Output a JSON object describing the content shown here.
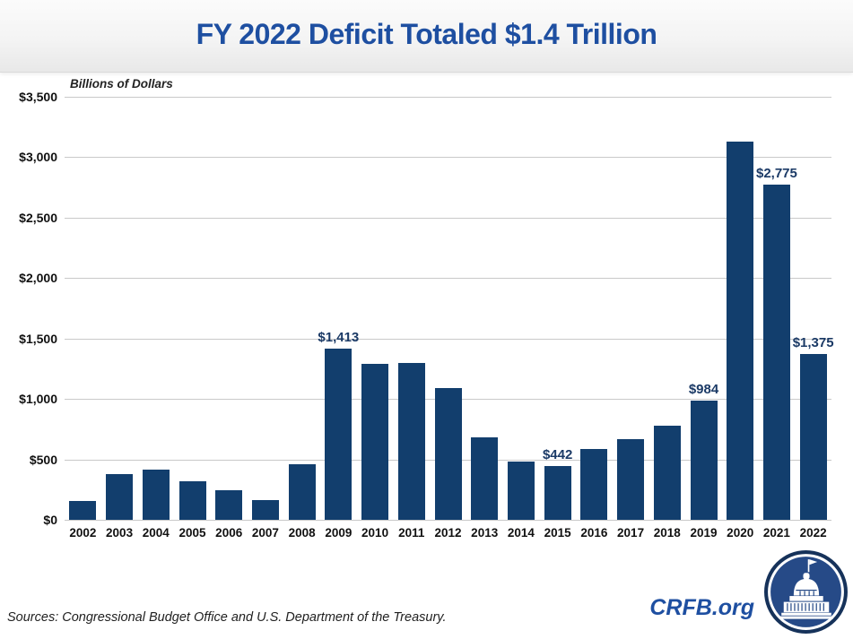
{
  "chart_data": {
    "type": "bar",
    "title": "FY 2022 Deficit Totaled $1.4 Trillion",
    "ylabel": "Billions of Dollars",
    "xlabel": "",
    "ylim": [
      0,
      3500
    ],
    "ytick_interval": 500,
    "ytick_labels": [
      "$0",
      "$500",
      "$1,000",
      "$1,500",
      "$2,000",
      "$2,500",
      "$3,000",
      "$3,500"
    ],
    "grid": true,
    "legend": "none",
    "categories": [
      "2002",
      "2003",
      "2004",
      "2005",
      "2006",
      "2007",
      "2008",
      "2009",
      "2010",
      "2011",
      "2012",
      "2013",
      "2014",
      "2015",
      "2016",
      "2017",
      "2018",
      "2019",
      "2020",
      "2021",
      "2022"
    ],
    "values": [
      158,
      378,
      413,
      318,
      248,
      161,
      459,
      1413,
      1294,
      1300,
      1087,
      679,
      485,
      442,
      585,
      665,
      779,
      984,
      3132,
      2775,
      1375
    ],
    "data_labels": {
      "2009": "$1,413",
      "2015": "$442",
      "2019": "$984",
      "2021": "$2,775",
      "2022": "$1,375"
    }
  },
  "footer": {
    "sources": "Sources: Congressional Budget Office and U.S. Department of the Treasury.",
    "brand": "CRFB.org"
  },
  "icons": {
    "logo": "capitol-building-icon"
  },
  "colors": {
    "title_blue": "#1e4fa1",
    "bar_navy": "#123e6d",
    "data_label_navy": "#1b3a66",
    "gridline_gray": "#c9c9c9",
    "logo_ring_navy": "#16325a",
    "logo_disc_blue": "#264a87"
  }
}
